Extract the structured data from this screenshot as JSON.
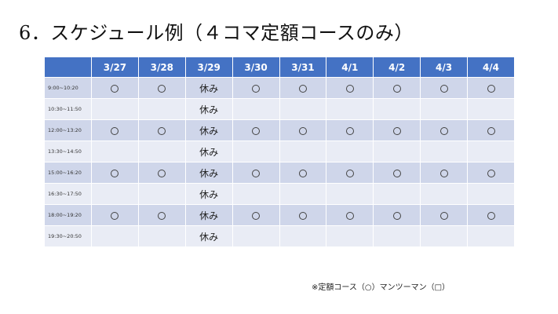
{
  "title": "6．スケジュール例（４コマ定額コースのみ）",
  "table": {
    "dates": [
      "3/27",
      "3/28",
      "3/29",
      "3/30",
      "3/31",
      "4/1",
      "4/2",
      "4/3",
      "4/4"
    ],
    "rows": [
      {
        "time": "9:00~10:20",
        "cells": [
          "○",
          "○",
          "休み",
          "○",
          "○",
          "○",
          "○",
          "○",
          "○"
        ]
      },
      {
        "time": "10:30~11:50",
        "cells": [
          "",
          "",
          "休み",
          "",
          "",
          "",
          "",
          "",
          ""
        ]
      },
      {
        "time": "12:00~13:20",
        "cells": [
          "○",
          "○",
          "休み",
          "○",
          "○",
          "○",
          "○",
          "○",
          "○"
        ]
      },
      {
        "time": "13:30~14:50",
        "cells": [
          "",
          "",
          "休み",
          "",
          "",
          "",
          "",
          "",
          ""
        ]
      },
      {
        "time": "15:00~16:20",
        "cells": [
          "○",
          "○",
          "休み",
          "○",
          "○",
          "○",
          "○",
          "○",
          "○"
        ]
      },
      {
        "time": "16:30~17:50",
        "cells": [
          "",
          "",
          "休み",
          "",
          "",
          "",
          "",
          "",
          ""
        ]
      },
      {
        "time": "18:00~19:20",
        "cells": [
          "○",
          "○",
          "休み",
          "○",
          "○",
          "○",
          "○",
          "○",
          "○"
        ]
      },
      {
        "time": "19:30~20:50",
        "cells": [
          "",
          "",
          "休み",
          "",
          "",
          "",
          "",
          "",
          ""
        ]
      }
    ]
  },
  "footnote": "※定額コース（○）マンツーマン（□）",
  "colors": {
    "header": "#4472c4",
    "row_dark": "#cfd6ea",
    "row_light": "#e9ecf5"
  }
}
